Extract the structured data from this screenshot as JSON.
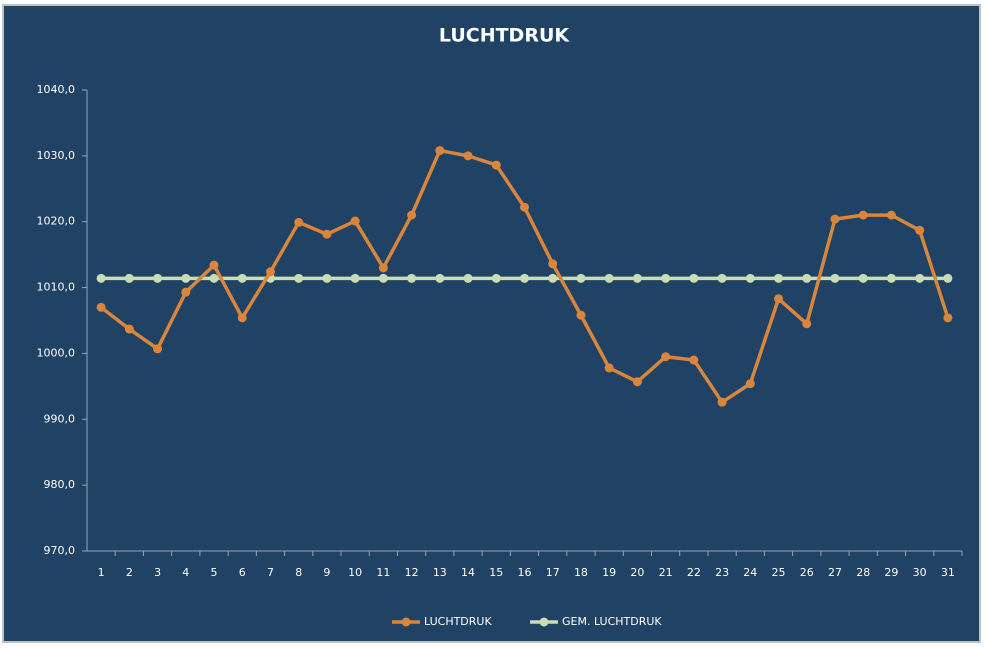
{
  "chart_data": {
    "type": "line",
    "title": "LUCHTDRUK",
    "categories": [
      "1",
      "2",
      "3",
      "4",
      "5",
      "6",
      "7",
      "8",
      "9",
      "10",
      "11",
      "12",
      "13",
      "14",
      "15",
      "16",
      "17",
      "18",
      "19",
      "20",
      "21",
      "22",
      "23",
      "24",
      "25",
      "26",
      "27",
      "28",
      "29",
      "30",
      "31"
    ],
    "series": [
      {
        "name": "LUCHTDRUK",
        "color": "#d9863c",
        "values": [
          1007.0,
          1003.7,
          1000.7,
          1009.3,
          1013.4,
          1005.4,
          1012.4,
          1019.9,
          1018.1,
          1020.1,
          1013.0,
          1021.0,
          1030.8,
          1030.0,
          1028.6,
          1022.2,
          1013.6,
          1005.8,
          997.8,
          995.7,
          999.5,
          999.0,
          992.6,
          995.4,
          1008.3,
          1004.5,
          1020.4,
          1021.0,
          1021.0,
          1018.7,
          1005.4
        ]
      },
      {
        "name": "GEM. LUCHTDRUK",
        "color": "#c9dcb3",
        "values": [
          1011.4,
          1011.4,
          1011.4,
          1011.4,
          1011.4,
          1011.4,
          1011.4,
          1011.4,
          1011.4,
          1011.4,
          1011.4,
          1011.4,
          1011.4,
          1011.4,
          1011.4,
          1011.4,
          1011.4,
          1011.4,
          1011.4,
          1011.4,
          1011.4,
          1011.4,
          1011.4,
          1011.4,
          1011.4,
          1011.4,
          1011.4,
          1011.4,
          1011.4,
          1011.4,
          1011.4
        ]
      }
    ],
    "ylim": [
      970,
      1040
    ],
    "yticks": [
      {
        "value": 970,
        "label": "970,0"
      },
      {
        "value": 980,
        "label": "980,0"
      },
      {
        "value": 990,
        "label": "990,0"
      },
      {
        "value": 1000,
        "label": "1000,0"
      },
      {
        "value": 1010,
        "label": "1010,0"
      },
      {
        "value": 1020,
        "label": "1020,0"
      },
      {
        "value": 1030,
        "label": "1030,0"
      },
      {
        "value": 1040,
        "label": "1040,0"
      }
    ],
    "legend": "bottom"
  }
}
